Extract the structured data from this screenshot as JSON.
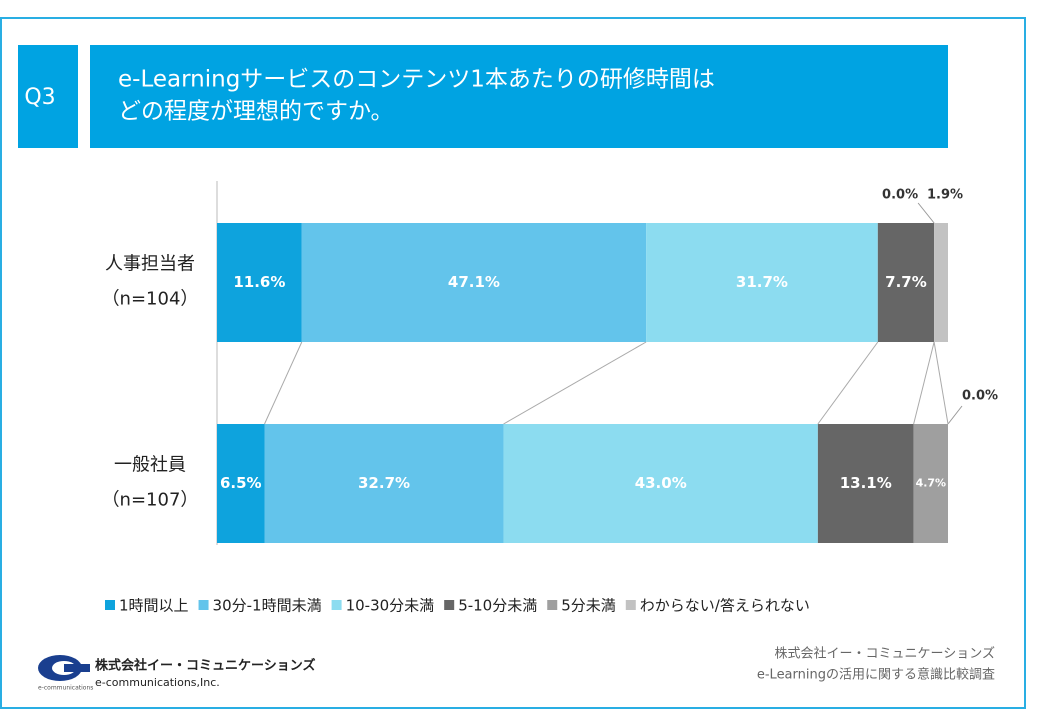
{
  "question": "Q3",
  "title": [
    "e-Learningサービスのコンテンツ1本あたりの研修時間は",
    "どの程度が理想的ですか。"
  ],
  "chart_data": {
    "type": "bar",
    "orientation": "horizontal",
    "stacked": true,
    "categories": [
      "人事担当者",
      "一般社員"
    ],
    "category_notes": [
      "（n=104）",
      "（n=107）"
    ],
    "xlim": [
      0,
      100
    ],
    "series": [
      {
        "name": "1時間以上",
        "color": "#0ea3dd",
        "values": [
          11.6,
          6.5
        ],
        "value_labels": [
          "11.6%",
          "6.5%"
        ]
      },
      {
        "name": "30分-1時間未満",
        "color": "#63c4eb",
        "values": [
          47.1,
          32.7
        ],
        "value_labels": [
          "47.1%",
          "32.7%"
        ]
      },
      {
        "name": "10-30分未満",
        "color": "#8cdcf0",
        "values": [
          31.7,
          43.0
        ],
        "value_labels": [
          "31.7%",
          "43.0%"
        ]
      },
      {
        "name": "5-10分未満",
        "color": "#666666",
        "values": [
          7.7,
          13.1
        ],
        "value_labels": [
          "7.7%",
          "13.1%"
        ]
      },
      {
        "name": "5分未満",
        "color": "#9f9f9f",
        "values": [
          0.0,
          4.7
        ],
        "value_labels": [
          "0.0%",
          "4.7%"
        ]
      },
      {
        "name": "わからない/答えられない",
        "color": "#c2c2c2",
        "values": [
          1.9,
          0.0
        ],
        "value_labels": [
          "1.9%",
          "0.0%"
        ]
      }
    ],
    "legend": "bottom"
  },
  "logo": {
    "name": "株式会社イー・コミュニケーションズ",
    "name_en": "e-communications,Inc.",
    "tagline": "e-communications"
  },
  "source": [
    "株式会社イー・コミュニケーションズ",
    "e-Learningの活用に関する意識比較調査"
  ]
}
